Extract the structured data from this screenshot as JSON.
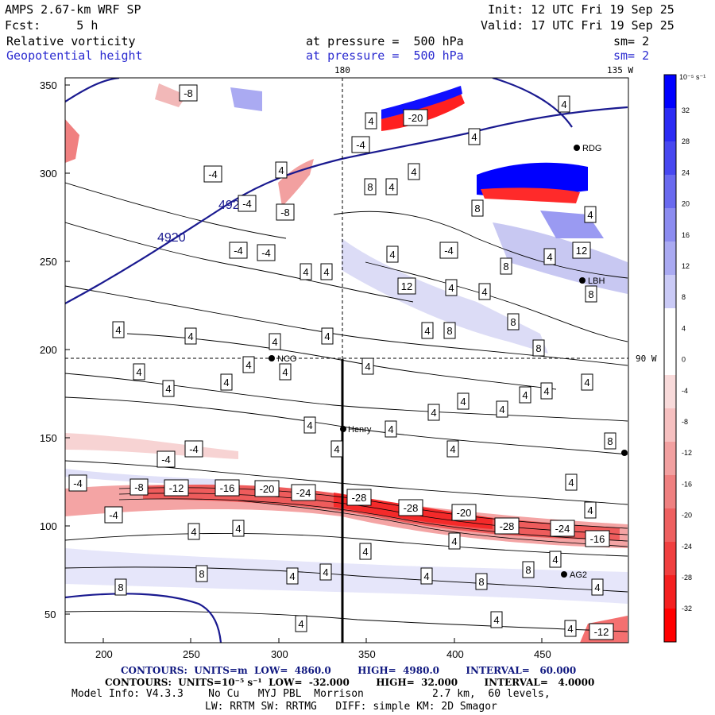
{
  "header": {
    "model": "AMPS 2.67-km WRF SP",
    "init": "Init: 12 UTC Fri 19 Sep 25",
    "fcst": "Fcst:     5 h",
    "valid": "Valid: 17 UTC Fri 19 Sep 25",
    "field1": "Relative vorticity",
    "field1_level": "at pressure =  500 hPa",
    "field1_sm": "sm= 2",
    "field2": "Geopotential height",
    "field2_level": "at pressure =  500 hPa",
    "field2_sm": "sm= 2"
  },
  "map": {
    "x_ticks": [
      "200",
      "250",
      "300",
      "350",
      "400",
      "450"
    ],
    "y_ticks": [
      "50",
      "100",
      "150",
      "200",
      "250",
      "300",
      "350"
    ],
    "top_lon_labels": [
      "180",
      "135 W"
    ],
    "right_lon_label": "90 W",
    "stations": [
      "NCO",
      "Henry",
      "RDG",
      "LBH",
      "AG2"
    ],
    "height_contour_label": "4920",
    "vorticity_labels": [
      "-8",
      "-4",
      "-12",
      "-16",
      "-20",
      "-24",
      "-28",
      "4",
      "8",
      "12"
    ]
  },
  "colorbar": {
    "unit": "10⁻⁵ s⁻¹",
    "ticks": [
      "32",
      "28",
      "24",
      "20",
      "16",
      "12",
      "8",
      "4",
      "0",
      "-4",
      "-8",
      "-12",
      "-16",
      "-20",
      "-24",
      "-28",
      "-32"
    ],
    "colors": [
      "#0000ff",
      "#2c2cf4",
      "#4848f0",
      "#6a6aef",
      "#8c8cf0",
      "#aaaaf2",
      "#cacaf6",
      "#ffffff",
      "#ffffff",
      "#f8dada",
      "#f6c0c0",
      "#f2a0a0",
      "#ef8080",
      "#ee6060",
      "#f04040",
      "#f42020",
      "#ff0000"
    ]
  },
  "footer": {
    "contours_height": "CONTOURS:  UNITS=m  LOW=  4860.0        HIGH=  4980.0        INTERVAL=   60.000",
    "contours_vort": "CONTOURS:  UNITS=10⁻⁵ s⁻¹  LOW=  -32.000        HIGH=  32.000        INTERVAL=   4.0000",
    "model_info": "Model Info: V4.3.3    No Cu   MYJ PBL  Morrison           2.7 km,  60 levels,",
    "model_info2": "LW: RRTM SW: RRTMG   DIFF: simple KM: 2D Smagor"
  }
}
